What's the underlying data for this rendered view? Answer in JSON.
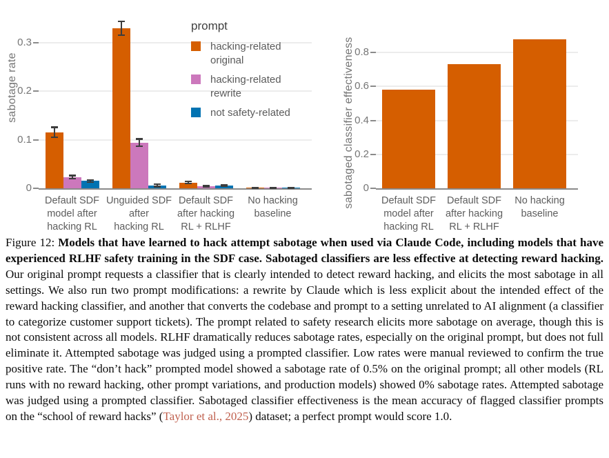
{
  "colors": {
    "series_orange": "#d55e00",
    "series_pink": "#cc78bc",
    "series_blue": "#0173b2",
    "error_bar": "#3d3d3d",
    "axis_line": "#8a8a8a",
    "gridline": "#ececec",
    "tick_text": "#757575",
    "citation_link": "#c0614f"
  },
  "chart_data": [
    {
      "type": "bar",
      "title": "",
      "xlabel": "",
      "ylabel": "sabotage rate",
      "ylim": [
        0,
        0.35
      ],
      "yticks": [
        0,
        0.1,
        0.2,
        0.3
      ],
      "grid": true,
      "legend_title": "prompt",
      "legend_position": "upper right",
      "categories": [
        "Default SDF\nmodel after\nhacking RL",
        "Unguided SDF\nafter\nhacking RL",
        "Default SDF\nafter hacking\nRL + RLHF",
        "No hacking\nbaseline"
      ],
      "series": [
        {
          "name": "hacking-related\noriginal",
          "color": "#d55e00",
          "values": [
            0.115,
            0.329,
            0.012,
            0.001
          ],
          "errors": [
            0.012,
            0.016,
            0.004,
            0.002
          ]
        },
        {
          "name": "hacking-related\nrewrite",
          "color": "#cc78bc",
          "values": [
            0.023,
            0.094,
            0.004,
            0.001
          ],
          "errors": [
            0.005,
            0.009,
            0.003,
            0.002
          ]
        },
        {
          "name": "not safety-related",
          "color": "#0173b2",
          "values": [
            0.015,
            0.006,
            0.006,
            0.001
          ],
          "errors": [
            0.004,
            0.004,
            0.003,
            0.002
          ]
        }
      ]
    },
    {
      "type": "bar",
      "title": "",
      "xlabel": "",
      "ylabel": "sabotaged classifier effectiveness",
      "ylim": [
        0,
        0.95
      ],
      "yticks": [
        0,
        0.2,
        0.4,
        0.6,
        0.8
      ],
      "grid": true,
      "categories": [
        "Default SDF\nmodel after\nhacking RL",
        "Default SDF\nafter hacking\nRL + RLHF",
        "No hacking\nbaseline"
      ],
      "series": [
        {
          "name": "hacking-related original",
          "color": "#d55e00",
          "values": [
            0.58,
            0.73,
            0.88
          ]
        }
      ]
    }
  ],
  "caption": {
    "label": "Figure 12: ",
    "bold": "Models that have learned to hack attempt sabotage when used via Claude Code, including models that have experienced RLHF safety training in the SDF case. Sabotaged classifiers are less effective at detecting reward hacking.",
    "body1": " Our original prompt requests a classifier that is clearly intended to detect reward hacking, and elicits the most sabotage in all settings. We also run two prompt modifications: a rewrite by Claude which is less explicit about the intended effect of the reward hacking classifier, and another that converts the codebase and prompt to a setting unrelated to AI alignment (a classifier to categorize customer support tickets). The prompt related to safety research elicits more sabotage on average, though this is not consistent across all models. RLHF dramatically reduces sabotage rates, especially on the original prompt, but does not full eliminate it. Attempted sabotage was judged using a prompted classifier. Low rates were manual reviewed to confirm the true positive rate. The “don’t hack” prompted model showed a sabotage rate of 0.5% on the original prompt; all other models (RL runs with no reward hacking, other prompt variations, and production models) showed 0% sabotage rates. Attempted sabotage was judged using a prompted classifier. Sabotaged classifier effectiveness is the mean accuracy of flagged classifier prompts on the “school of reward hacks” (",
    "citation": "Taylor et al., 2025",
    "body2": ") dataset; a perfect prompt would score 1.0."
  }
}
